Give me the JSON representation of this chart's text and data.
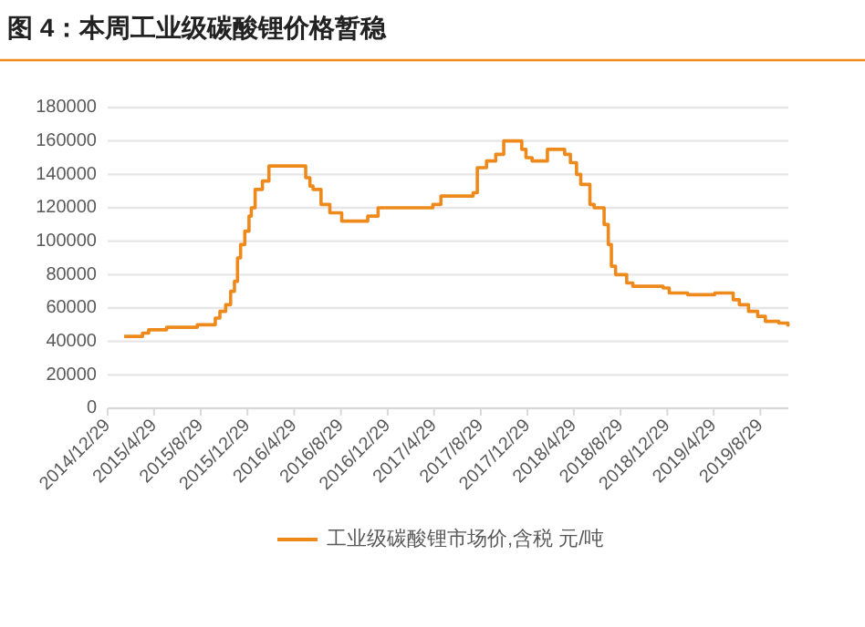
{
  "chart_data": {
    "type": "step",
    "title": "图 4：本周工业级碳酸锂价格暂稳",
    "x": [
      "2015-02-10",
      "2015-03-30",
      "2015-04-15",
      "2015-06-01",
      "2015-08-20",
      "2015-10-06",
      "2015-10-18",
      "2015-11-02",
      "2015-11-15",
      "2015-11-25",
      "2015-12-03",
      "2015-12-11",
      "2015-12-22",
      "2016-01-02",
      "2016-01-08",
      "2016-01-18",
      "2016-02-06",
      "2016-02-23",
      "2016-05-29",
      "2016-06-09",
      "2016-06-17",
      "2016-07-08",
      "2016-07-31",
      "2016-08-31",
      "2016-11-07",
      "2016-12-04",
      "2017-04-26",
      "2017-05-17",
      "2017-08-09",
      "2017-08-20",
      "2017-09-13",
      "2017-10-07",
      "2017-10-28",
      "2017-12-14",
      "2017-12-25",
      "2018-01-10",
      "2018-02-19",
      "2018-04-05",
      "2018-04-20",
      "2018-05-06",
      "2018-05-17",
      "2018-06-10",
      "2018-06-21",
      "2018-07-17",
      "2018-07-28",
      "2018-08-05",
      "2018-08-16",
      "2018-09-14",
      "2018-09-30",
      "2018-12-18",
      "2019-01-03",
      "2019-02-20",
      "2019-05-02",
      "2019-06-19",
      "2019-07-05",
      "2019-07-29",
      "2019-08-22",
      "2019-09-11",
      "2019-10-16",
      "2019-11-09"
    ],
    "series": [
      {
        "name": "工业级碳酸锂市场价,含税 元/吨",
        "color": "#ee8a1c",
        "values": [
          43000,
          45000,
          47000,
          48500,
          50000,
          54000,
          58000,
          62000,
          70000,
          76000,
          90000,
          98000,
          106000,
          115000,
          120000,
          131000,
          136000,
          145000,
          138000,
          133000,
          131000,
          122000,
          117000,
          112000,
          115000,
          120000,
          122000,
          127000,
          129000,
          144000,
          148000,
          152000,
          160000,
          155000,
          150000,
          148000,
          155000,
          152000,
          147000,
          140000,
          134000,
          122000,
          120000,
          110000,
          98000,
          85000,
          80000,
          75000,
          73000,
          72000,
          69000,
          68000,
          69000,
          65000,
          62000,
          58000,
          55000,
          52000,
          51000,
          49000
        ]
      }
    ],
    "xlim": [
      "2014-12-29",
      "2019-11-10"
    ],
    "xticks": [
      {
        "value": "2014-12-29",
        "label": "2014/12/29"
      },
      {
        "value": "2015-04-29",
        "label": "2015/4/29"
      },
      {
        "value": "2015-08-29",
        "label": "2015/8/29"
      },
      {
        "value": "2015-12-29",
        "label": "2015/12/29"
      },
      {
        "value": "2016-04-29",
        "label": "2016/4/29"
      },
      {
        "value": "2016-08-29",
        "label": "2016/8/29"
      },
      {
        "value": "2016-12-29",
        "label": "2016/12/29"
      },
      {
        "value": "2017-04-29",
        "label": "2017/4/29"
      },
      {
        "value": "2017-08-29",
        "label": "2017/8/29"
      },
      {
        "value": "2017-12-29",
        "label": "2017/12/29"
      },
      {
        "value": "2018-04-29",
        "label": "2018/4/29"
      },
      {
        "value": "2018-08-29",
        "label": "2018/8/29"
      },
      {
        "value": "2018-12-29",
        "label": "2018/12/29"
      },
      {
        "value": "2019-04-29",
        "label": "2019/4/29"
      },
      {
        "value": "2019-08-29",
        "label": "2019/8/29"
      }
    ],
    "ylim": [
      0,
      180000
    ],
    "yticks": [
      0,
      20000,
      40000,
      60000,
      80000,
      100000,
      120000,
      140000,
      160000,
      180000
    ],
    "grid": "y",
    "legend": "bottom"
  }
}
